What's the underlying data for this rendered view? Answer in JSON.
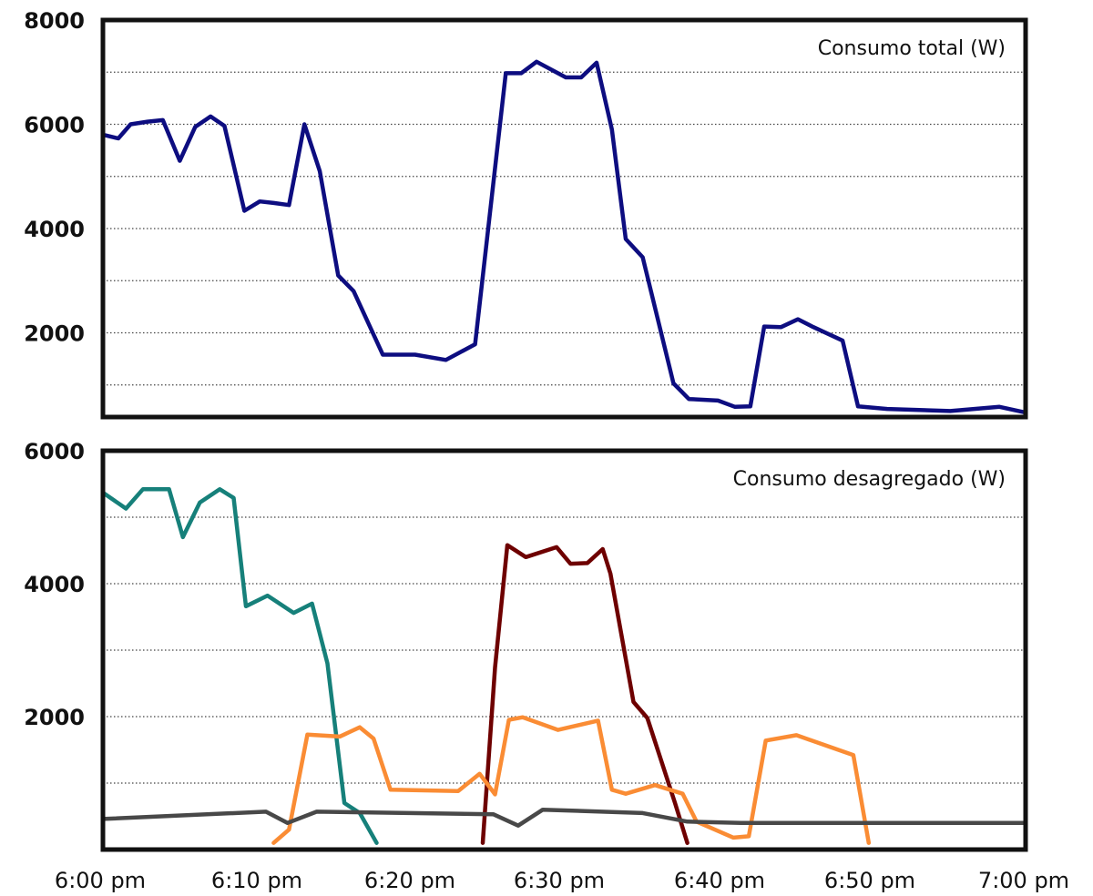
{
  "chart_data": [
    {
      "type": "line",
      "title": "Consumo total (W)",
      "xlabel": "",
      "ylabel": "",
      "x_ticks": [
        "6:00 pm",
        "6:10 pm",
        "6:20 pm",
        "6:30 pm",
        "6:40 pm",
        "6:50 pm",
        "7:00 pm"
      ],
      "xlim_minutes": [
        0,
        60
      ],
      "y_ticks": [
        "8000",
        "6000",
        "4000",
        "2000"
      ],
      "ylim": [
        0,
        8000
      ],
      "grid": true,
      "series": [
        {
          "name": "",
          "color": "#0d0d80",
          "points": [
            [
              0.0,
              5800
            ],
            [
              1.0,
              5730
            ],
            [
              1.8,
              6000
            ],
            [
              2.9,
              6050
            ],
            [
              3.9,
              6080
            ],
            [
              5.0,
              5300
            ],
            [
              6.0,
              5950
            ],
            [
              7.0,
              6150
            ],
            [
              7.9,
              5970
            ],
            [
              9.2,
              4340
            ],
            [
              10.2,
              4520
            ],
            [
              11.1,
              4490
            ],
            [
              12.1,
              4450
            ],
            [
              13.1,
              6000
            ],
            [
              14.1,
              5100
            ],
            [
              15.3,
              3100
            ],
            [
              16.3,
              2800
            ],
            [
              18.2,
              1580
            ],
            [
              20.3,
              1580
            ],
            [
              22.3,
              1480
            ],
            [
              24.2,
              1780
            ],
            [
              26.2,
              6980
            ],
            [
              27.2,
              6980
            ],
            [
              28.2,
              7200
            ],
            [
              30.1,
              6900
            ],
            [
              31.1,
              6900
            ],
            [
              32.1,
              7180
            ],
            [
              33.1,
              5900
            ],
            [
              34.0,
              3800
            ],
            [
              35.1,
              3450
            ],
            [
              37.1,
              1030
            ],
            [
              38.1,
              730
            ],
            [
              40.0,
              700
            ],
            [
              41.1,
              580
            ],
            [
              42.1,
              590
            ],
            [
              43.0,
              2120
            ],
            [
              44.1,
              2110
            ],
            [
              45.2,
              2260
            ],
            [
              46.2,
              2110
            ],
            [
              48.1,
              1850
            ],
            [
              49.1,
              590
            ],
            [
              51.0,
              540
            ],
            [
              55.1,
              500
            ],
            [
              58.3,
              580
            ],
            [
              60.0,
              470
            ]
          ]
        }
      ]
    },
    {
      "type": "line",
      "title": "Consumo desagregado (W)",
      "xlabel": "",
      "ylabel": "",
      "x_ticks": [
        "6:00 pm",
        "6:10 pm",
        "6:20 pm",
        "6:30 pm",
        "6:40 pm",
        "6:50 pm",
        "7:00 pm"
      ],
      "xlim_minutes": [
        0,
        60
      ],
      "y_ticks": [
        "6000",
        "4000",
        "2000"
      ],
      "ylim": [
        0,
        6000
      ],
      "grid": true,
      "series": [
        {
          "name": "",
          "color": "#16807a",
          "points": [
            [
              0.0,
              5370
            ],
            [
              1.5,
              5130
            ],
            [
              2.6,
              5420
            ],
            [
              4.3,
              5420
            ],
            [
              5.2,
              4700
            ],
            [
              6.3,
              5220
            ],
            [
              7.6,
              5420
            ],
            [
              8.5,
              5290
            ],
            [
              9.3,
              3660
            ],
            [
              10.7,
              3820
            ],
            [
              12.4,
              3560
            ],
            [
              13.6,
              3700
            ],
            [
              14.6,
              2800
            ],
            [
              15.7,
              700
            ],
            [
              16.7,
              550
            ],
            [
              17.8,
              100
            ]
          ]
        },
        {
          "name": "",
          "color": "#6e0000",
          "points": [
            [
              24.7,
              100
            ],
            [
              25.5,
              2740
            ],
            [
              26.3,
              4580
            ],
            [
              27.5,
              4400
            ],
            [
              29.5,
              4550
            ],
            [
              30.4,
              4300
            ],
            [
              31.5,
              4310
            ],
            [
              32.5,
              4520
            ],
            [
              33.0,
              4150
            ],
            [
              34.5,
              2220
            ],
            [
              35.4,
              1980
            ],
            [
              37.2,
              700
            ],
            [
              38.0,
              100
            ]
          ]
        },
        {
          "name": "",
          "color": "#fa8c34",
          "points": [
            [
              11.1,
              100
            ],
            [
              12.1,
              300
            ],
            [
              13.3,
              1730
            ],
            [
              15.4,
              1700
            ],
            [
              16.7,
              1840
            ],
            [
              17.6,
              1670
            ],
            [
              18.7,
              900
            ],
            [
              23.1,
              880
            ],
            [
              24.5,
              1140
            ],
            [
              25.5,
              830
            ],
            [
              26.4,
              1950
            ],
            [
              27.3,
              1990
            ],
            [
              29.6,
              1800
            ],
            [
              32.2,
              1940
            ],
            [
              33.1,
              900
            ],
            [
              34.0,
              840
            ],
            [
              35.9,
              970
            ],
            [
              37.7,
              840
            ],
            [
              38.6,
              420
            ],
            [
              41.0,
              180
            ],
            [
              42.0,
              200
            ],
            [
              43.1,
              1640
            ],
            [
              45.1,
              1720
            ],
            [
              48.8,
              1420
            ],
            [
              49.8,
              100
            ]
          ]
        },
        {
          "name": "",
          "color": "#484848",
          "points": [
            [
              0.0,
              460
            ],
            [
              10.6,
              570
            ],
            [
              12.0,
              400
            ],
            [
              13.9,
              570
            ],
            [
              25.4,
              530
            ],
            [
              27.0,
              360
            ],
            [
              28.6,
              600
            ],
            [
              35.1,
              550
            ],
            [
              38.0,
              420
            ],
            [
              41.5,
              400
            ],
            [
              60.0,
              400
            ]
          ]
        }
      ]
    }
  ]
}
